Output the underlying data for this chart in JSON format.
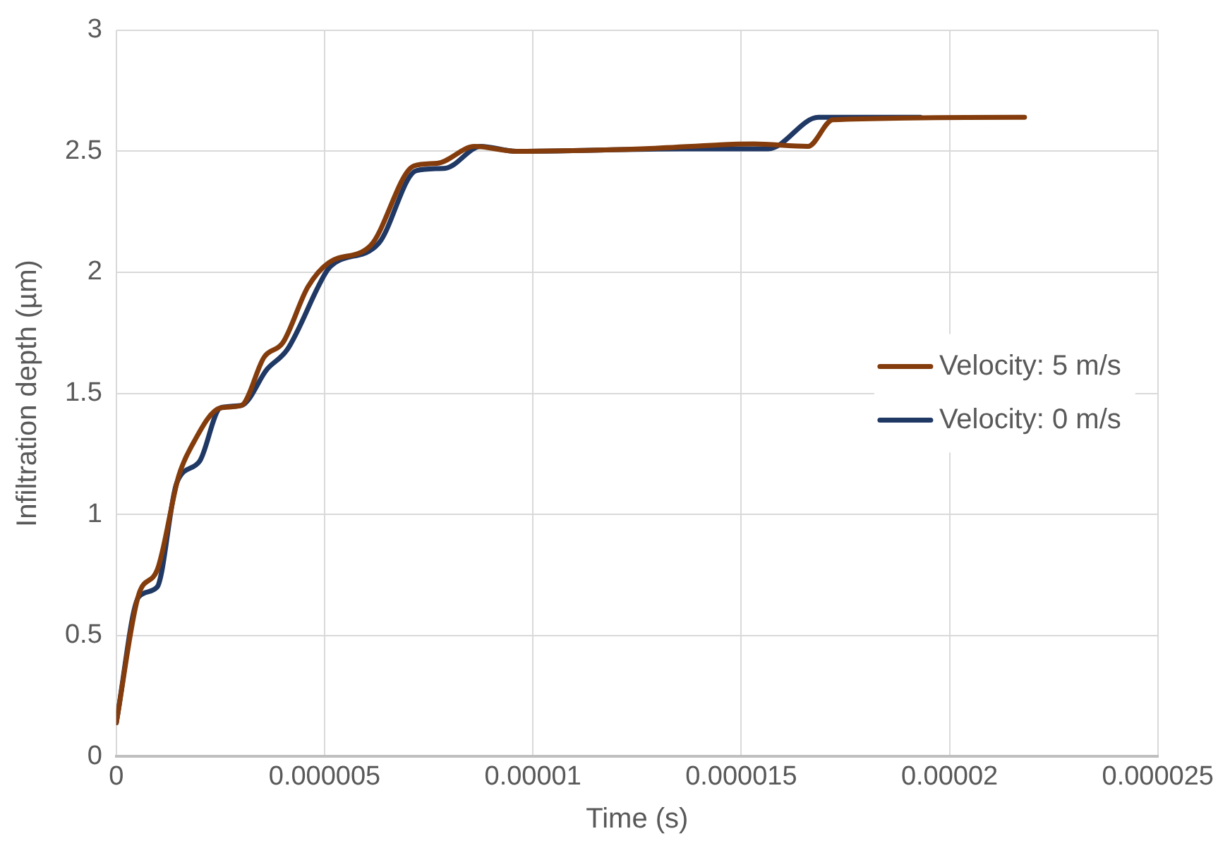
{
  "chart_data": {
    "type": "line",
    "xlabel": "Time (s)",
    "ylabel": "Infiltration depth (µm)",
    "xlim": [
      0,
      2.5e-05
    ],
    "xticks": [
      0,
      {
        "value": 5e-06,
        "label": "0.000005"
      },
      {
        "value": 1e-05,
        "label": "0.00001"
      },
      {
        "value": 1.5e-05,
        "label": "0.000015"
      },
      {
        "value": 2e-05,
        "label": "0.00002"
      },
      {
        "value": 2.5e-05,
        "label": "0.000025"
      }
    ],
    "ylim": [
      0,
      3
    ],
    "yticks": [
      0,
      0.5,
      1,
      1.5,
      2,
      2.5,
      3
    ],
    "grid": true,
    "legend": "right",
    "marker": "none",
    "line_style": "solid",
    "series": [
      {
        "name": "Velocity: 5 m/s",
        "color": "#843c0c",
        "x": [
          0,
          5.4e-07,
          9.8e-07,
          1.5e-06,
          1.8e-06,
          2.5e-06,
          3e-06,
          3.55e-06,
          4e-06,
          4.6e-06,
          5.1e-06,
          6.1e-06,
          7.15e-06,
          7.7e-06,
          8.6e-06,
          9.6e-06,
          1.26e-05,
          1.53e-05,
          1.66e-05,
          1.72e-05,
          2.18e-05
        ],
        "values": [
          0.14,
          0.67,
          0.77,
          1.16,
          1.28,
          1.44,
          1.45,
          1.65,
          1.71,
          1.94,
          2.04,
          2.11,
          2.44,
          2.45,
          2.52,
          2.5,
          2.51,
          2.53,
          2.52,
          2.63,
          2.64
        ]
      },
      {
        "name": "Velocity: 0 m/s",
        "color": "#203864",
        "x": [
          0,
          5.4e-07,
          9.8e-07,
          1.45e-06,
          2e-06,
          2.5e-06,
          3e-06,
          3.62e-06,
          4.1e-06,
          5.07e-06,
          5.25e-06,
          6.3e-06,
          7.2e-06,
          7.9e-06,
          8.75e-06,
          9.6e-06,
          1.36e-05,
          1.565e-05,
          1.685e-05,
          1.93e-05
        ],
        "values": [
          0.14,
          0.66,
          0.7,
          1.13,
          1.22,
          1.44,
          1.45,
          1.6,
          1.68,
          2.01,
          2.04,
          2.12,
          2.42,
          2.43,
          2.52,
          2.5,
          2.51,
          2.51,
          2.64,
          2.64
        ]
      }
    ]
  }
}
